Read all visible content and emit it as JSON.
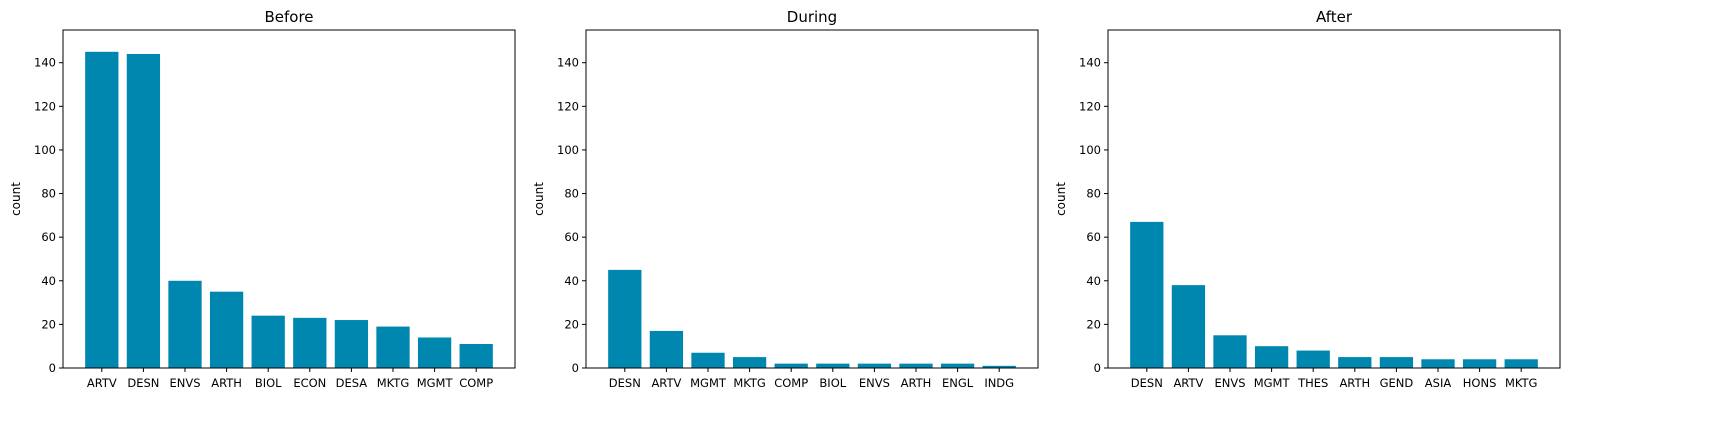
{
  "chart_data": [
    {
      "type": "bar",
      "title": "Before",
      "xlabel": "",
      "ylabel": "count",
      "ylim": [
        0,
        155
      ],
      "yticks": [
        0,
        20,
        40,
        60,
        80,
        100,
        120,
        140
      ],
      "categories": [
        "ARTV",
        "DESN",
        "ENVS",
        "ARTH",
        "BIOL",
        "ECON",
        "DESA",
        "MKTG",
        "MGMT",
        "COMP"
      ],
      "values": [
        145,
        144,
        40,
        35,
        24,
        23,
        22,
        19,
        14,
        11
      ]
    },
    {
      "type": "bar",
      "title": "During",
      "xlabel": "",
      "ylabel": "count",
      "ylim": [
        0,
        155
      ],
      "yticks": [
        0,
        20,
        40,
        60,
        80,
        100,
        120,
        140
      ],
      "categories": [
        "DESN",
        "ARTV",
        "MGMT",
        "MKTG",
        "COMP",
        "BIOL",
        "ENVS",
        "ARTH",
        "ENGL",
        "INDG"
      ],
      "values": [
        45,
        17,
        7,
        5,
        2,
        2,
        2,
        2,
        2,
        1
      ]
    },
    {
      "type": "bar",
      "title": "After",
      "xlabel": "",
      "ylabel": "count",
      "ylim": [
        0,
        155
      ],
      "yticks": [
        0,
        20,
        40,
        60,
        80,
        100,
        120,
        140
      ],
      "categories": [
        "DESN",
        "ARTV",
        "ENVS",
        "MGMT",
        "THES",
        "ARTH",
        "GEND",
        "ASIA",
        "HONS",
        "MKTG"
      ],
      "values": [
        67,
        38,
        15,
        10,
        8,
        5,
        5,
        4,
        4,
        4
      ]
    }
  ],
  "style": {
    "bar_color": "#0087b0",
    "axis_color": "#000000",
    "background": "#ffffff"
  }
}
